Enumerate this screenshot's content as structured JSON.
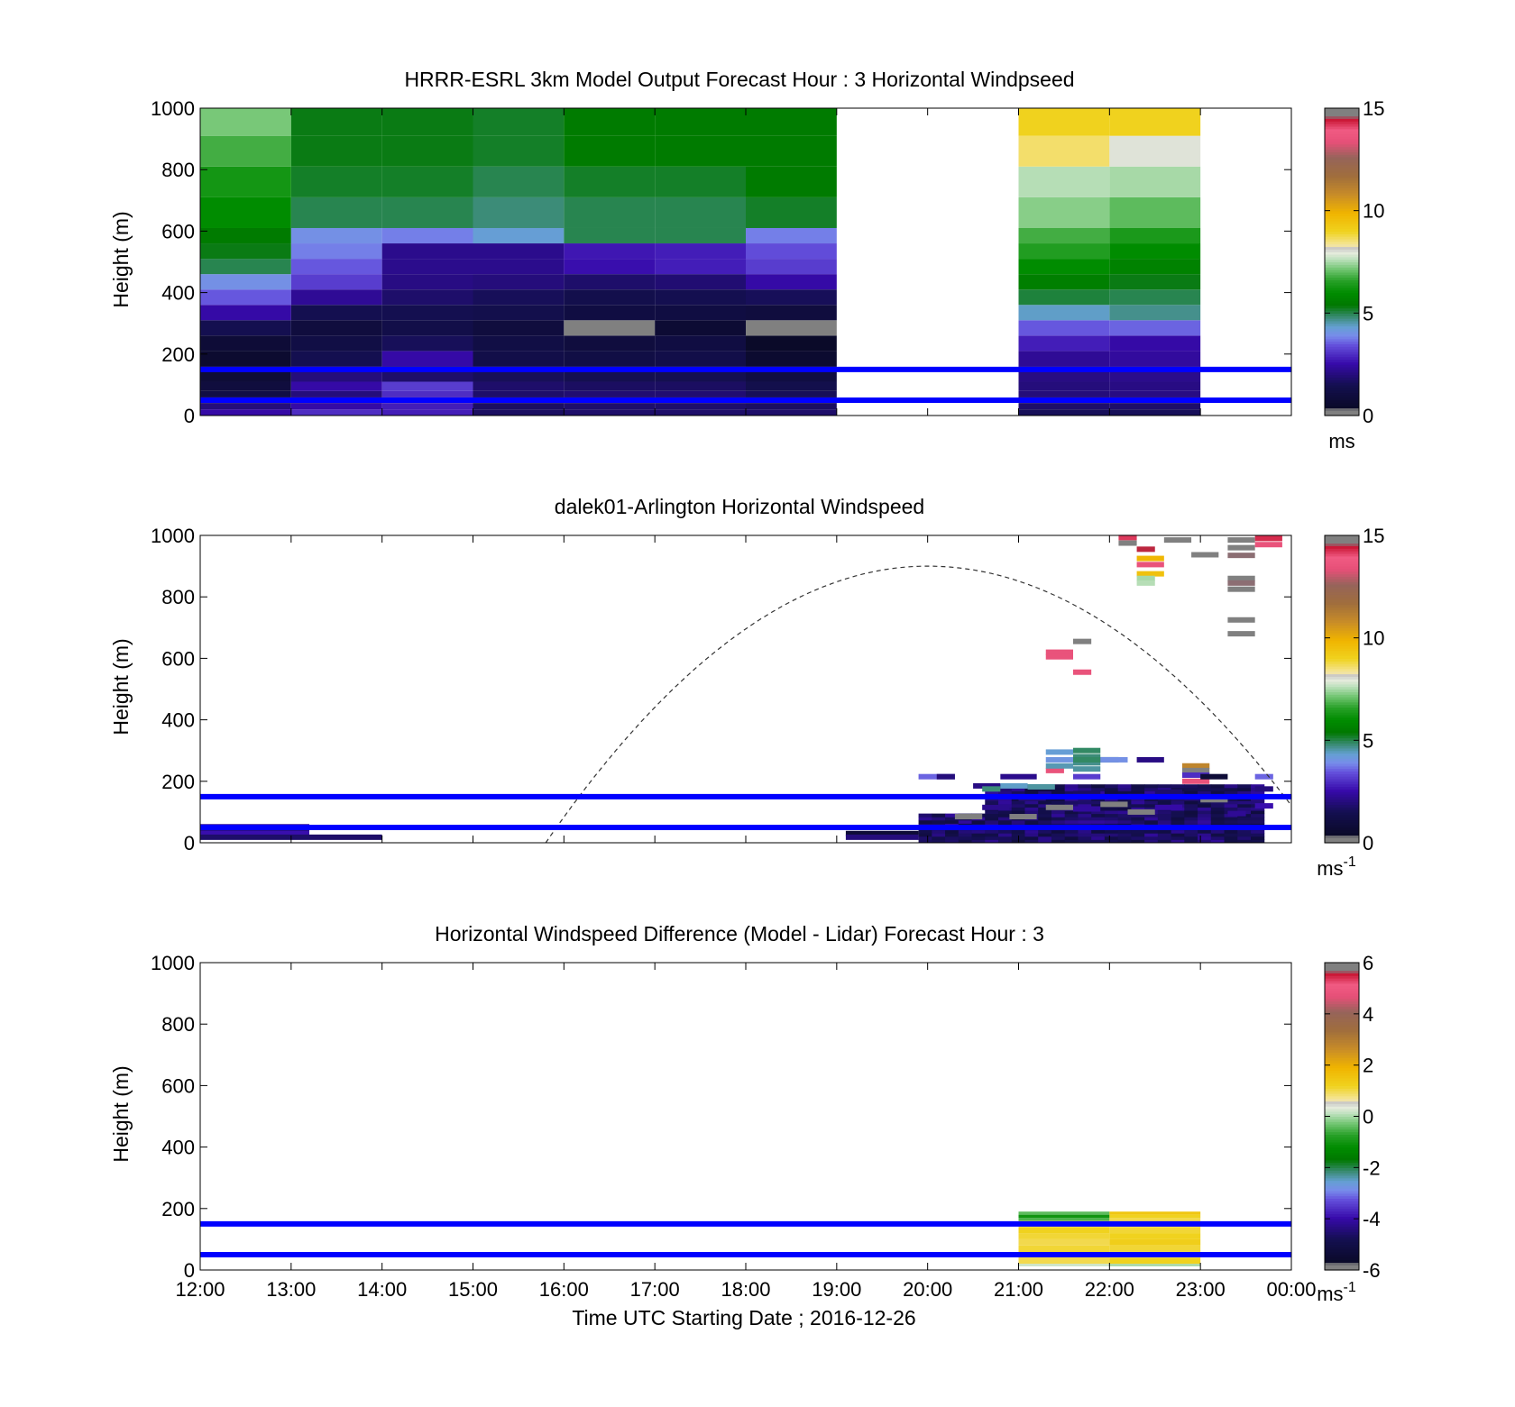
{
  "figure": {
    "xlabel": "Time UTC  Starting Date ; 2016-12-26",
    "xticks": [
      "12:00",
      "13:00",
      "14:00",
      "15:00",
      "16:00",
      "17:00",
      "18:00",
      "19:00",
      "20:00",
      "21:00",
      "22:00",
      "23:00",
      "00:00"
    ],
    "reference_heights_m": [
      50,
      150
    ],
    "reference_line_color": "#0000ff"
  },
  "chart_data": [
    {
      "type": "heatmap",
      "title": "HRRR-ESRL 3km Model Output   Forecast Hour : 3 Horizontal Windpseed",
      "ylabel": "Height (m)",
      "yticks": [
        "0",
        "200",
        "400",
        "600",
        "800",
        "1000"
      ],
      "ylim": [
        0,
        1000
      ],
      "xlim_hours": [
        12,
        24
      ],
      "colorbar": {
        "ticks": [
          "0",
          "5",
          "10",
          "15"
        ],
        "range": [
          0,
          15
        ],
        "unit": "ms",
        "unit_sup": ""
      },
      "cell_hours": 1,
      "layer_heights_m": [
        0,
        20,
        40,
        60,
        80,
        110,
        160,
        210,
        260,
        310,
        360,
        410,
        460,
        510,
        560,
        610,
        710,
        810,
        910,
        1000
      ],
      "columns": [
        {
          "start": 12,
          "values": [
            2.5,
            2.0,
            1.8,
            1.2,
            1.0,
            0.8,
            0.6,
            0.8,
            1.5,
            2.5,
            3.5,
            4.0,
            5.0,
            5.3,
            5.5,
            6.0,
            6.3,
            6.8,
            7.2
          ]
        },
        {
          "start": 13,
          "values": [
            3.0,
            2.5,
            2.2,
            2.0,
            2.5,
            2.0,
            1.5,
            1.2,
            1.0,
            1.5,
            2.3,
            3.2,
            3.5,
            3.8,
            4.0,
            5.0,
            5.2,
            5.3,
            5.3
          ]
        },
        {
          "start": 14,
          "values": [
            2.8,
            2.8,
            3.0,
            3.0,
            3.2,
            1.8,
            2.5,
            1.6,
            1.3,
            1.5,
            1.8,
            2.1,
            2.2,
            2.2,
            3.8,
            5.0,
            5.2,
            5.3,
            5.3
          ]
        },
        {
          "start": 15,
          "values": [
            1.7,
            1.7,
            1.8,
            1.8,
            1.8,
            1.6,
            1.3,
            1.2,
            1.0,
            1.4,
            1.6,
            2.0,
            2.2,
            2.2,
            4.3,
            4.8,
            5.0,
            5.2,
            5.2
          ]
        },
        {
          "start": 16,
          "values": [
            1.8,
            1.8,
            1.9,
            1.9,
            1.7,
            1.5,
            1.2,
            1.0,
            0,
            1.1,
            1.4,
            1.8,
            2.6,
            2.7,
            5.0,
            5.0,
            5.2,
            5.5,
            5.5
          ]
        },
        {
          "start": 17,
          "values": [
            1.8,
            1.8,
            1.9,
            1.9,
            1.7,
            1.5,
            1.3,
            1.1,
            0.7,
            1.1,
            1.5,
            1.9,
            2.8,
            2.8,
            5.0,
            5.0,
            5.2,
            5.5,
            5.5
          ]
        },
        {
          "start": 18,
          "values": [
            1.8,
            1.7,
            1.7,
            1.6,
            1.4,
            1.1,
            0.6,
            0.4,
            0,
            1.0,
            1.6,
            2.5,
            3.2,
            3.4,
            3.8,
            5.2,
            5.5,
            5.5,
            5.5
          ]
        },
        {
          "start": 21,
          "values": [
            1.6,
            1.8,
            2.0,
            2.0,
            2.0,
            2.1,
            2.3,
            2.8,
            3.5,
            4.4,
            5.1,
            5.6,
            6.0,
            6.5,
            6.8,
            7.3,
            7.6,
            8.6,
            9.0
          ]
        },
        {
          "start": 22,
          "values": [
            1.6,
            1.8,
            2.0,
            2.1,
            2.1,
            2.2,
            2.4,
            2.5,
            3.6,
            4.7,
            5.0,
            5.3,
            5.7,
            6.0,
            6.4,
            7.0,
            7.5,
            8.0,
            9.0
          ]
        }
      ]
    },
    {
      "type": "heatmap",
      "title": "dalek01-Arlington  Horizontal Windspeed",
      "ylabel": "Height (m)",
      "yticks": [
        "0",
        "200",
        "400",
        "600",
        "800",
        "1000"
      ],
      "ylim": [
        0,
        1000
      ],
      "xlim_hours": [
        12,
        24
      ],
      "colorbar": {
        "ticks": [
          "0",
          "5",
          "10",
          "15"
        ],
        "range": [
          0,
          15
        ],
        "unit": "ms",
        "unit_sup": "-1"
      },
      "daylight_curve": {
        "start_hour": 15.8,
        "peak_hour": 20.0,
        "end_hour": 24.0,
        "peak_height_m": 900
      },
      "dense_region": {
        "start_hour": 19.9,
        "end_hour": 23.7,
        "top_height_m": 190,
        "base_value": 1.0
      },
      "segments": [
        {
          "h0": 12.0,
          "h1": 13.2,
          "z": 52,
          "v": 2.3
        },
        {
          "h0": 12.0,
          "h1": 13.2,
          "z": 42,
          "v": 2.0
        },
        {
          "h0": 12.0,
          "h1": 13.2,
          "z": 30,
          "v": 2.6
        },
        {
          "h0": 12.0,
          "h1": 14.0,
          "z": 18,
          "v": 1.8
        },
        {
          "h0": 19.1,
          "h1": 19.9,
          "z": 30,
          "v": 0.8
        },
        {
          "h0": 19.1,
          "h1": 19.9,
          "z": 18,
          "v": 2.0
        },
        {
          "h0": 19.9,
          "h1": 20.3,
          "z": 215,
          "v": 3.6
        },
        {
          "h0": 20.1,
          "h1": 20.3,
          "z": 215,
          "v": 2.0
        },
        {
          "h0": 20.5,
          "h1": 20.8,
          "z": 185,
          "v": 2.1
        },
        {
          "h0": 20.6,
          "h1": 20.8,
          "z": 175,
          "v": 4.8
        },
        {
          "h0": 20.8,
          "h1": 21.1,
          "z": 185,
          "v": 4.4
        },
        {
          "h0": 21.1,
          "h1": 21.4,
          "z": 182,
          "v": 4.6
        },
        {
          "h0": 21.3,
          "h1": 21.5,
          "z": 235,
          "v": 13.5
        },
        {
          "h0": 20.8,
          "h1": 21.2,
          "z": 215,
          "v": 2.2
        },
        {
          "h0": 21.3,
          "h1": 21.6,
          "z": 295,
          "v": 4.3
        },
        {
          "h0": 21.3,
          "h1": 21.6,
          "z": 270,
          "v": 4.1
        },
        {
          "h0": 21.3,
          "h1": 21.6,
          "z": 250,
          "v": 4.5
        },
        {
          "h0": 21.6,
          "h1": 21.9,
          "z": 300,
          "v": 4.9
        },
        {
          "h0": 21.6,
          "h1": 21.9,
          "z": 280,
          "v": 4.8
        },
        {
          "h0": 21.6,
          "h1": 21.9,
          "z": 260,
          "v": 4.7
        },
        {
          "h0": 21.6,
          "h1": 21.9,
          "z": 240,
          "v": 4.6
        },
        {
          "h0": 21.6,
          "h1": 22.1,
          "z": 270,
          "v": 4.9
        },
        {
          "h0": 21.9,
          "h1": 22.2,
          "z": 270,
          "v": 4.0
        },
        {
          "h0": 21.6,
          "h1": 21.9,
          "z": 215,
          "v": 3.2
        },
        {
          "h0": 22.3,
          "h1": 22.6,
          "z": 270,
          "v": 2.1
        },
        {
          "h0": 22.8,
          "h1": 23.1,
          "z": 250,
          "v": 11.0
        },
        {
          "h0": 22.8,
          "h1": 23.1,
          "z": 235,
          "v": 0
        },
        {
          "h0": 22.8,
          "h1": 23.1,
          "z": 220,
          "v": 3.0
        },
        {
          "h0": 22.8,
          "h1": 23.1,
          "z": 200,
          "v": 13.5
        },
        {
          "h0": 23.0,
          "h1": 23.3,
          "z": 215,
          "v": 0.8
        },
        {
          "h0": 23.6,
          "h1": 23.8,
          "z": 215,
          "v": 3.6
        },
        {
          "h0": 23.6,
          "h1": 23.8,
          "z": 175,
          "v": 2.0
        },
        {
          "h0": 23.6,
          "h1": 23.8,
          "z": 120,
          "v": 2.6
        },
        {
          "h0": 20.3,
          "h1": 20.6,
          "z": 85,
          "v": 0
        },
        {
          "h0": 20.6,
          "h1": 20.9,
          "z": 115,
          "v": 2.2
        },
        {
          "h0": 20.9,
          "h1": 21.2,
          "z": 85,
          "v": 0
        },
        {
          "h0": 21.3,
          "h1": 21.6,
          "z": 115,
          "v": 0
        },
        {
          "h0": 21.6,
          "h1": 21.9,
          "z": 110,
          "v": 2.4
        },
        {
          "h0": 21.9,
          "h1": 22.2,
          "z": 125,
          "v": 0
        },
        {
          "h0": 22.2,
          "h1": 22.5,
          "z": 100,
          "v": 0
        },
        {
          "h0": 22.5,
          "h1": 22.8,
          "z": 115,
          "v": 2.5
        },
        {
          "h0": 23.0,
          "h1": 23.3,
          "z": 140,
          "v": 0
        },
        {
          "h0": 23.3,
          "h1": 23.5,
          "z": 95,
          "v": 2.3
        },
        {
          "h0": 21.0,
          "h1": 21.3,
          "z": 145,
          "v": 2.0
        },
        {
          "h0": 21.6,
          "h1": 21.9,
          "z": 160,
          "v": 1.7
        },
        {
          "h0": 22.2,
          "h1": 22.5,
          "z": 150,
          "v": 2.2
        },
        {
          "h0": 22.5,
          "h1": 22.8,
          "z": 165,
          "v": 1.8
        },
        {
          "h0": 21.3,
          "h1": 21.6,
          "z": 620,
          "v": 13.5
        },
        {
          "h0": 21.3,
          "h1": 21.6,
          "z": 605,
          "v": 13.5
        },
        {
          "h0": 21.6,
          "h1": 21.8,
          "z": 655,
          "v": 0
        },
        {
          "h0": 21.6,
          "h1": 21.8,
          "z": 555,
          "v": 13.5
        },
        {
          "h0": 22.1,
          "h1": 22.3,
          "z": 993,
          "v": 14.2
        },
        {
          "h0": 22.1,
          "h1": 22.3,
          "z": 975,
          "v": 14.8
        },
        {
          "h0": 22.3,
          "h1": 22.5,
          "z": 955,
          "v": 14.5
        },
        {
          "h0": 22.3,
          "h1": 22.6,
          "z": 925,
          "v": 9.8
        },
        {
          "h0": 22.3,
          "h1": 22.6,
          "z": 905,
          "v": 13.5
        },
        {
          "h0": 22.3,
          "h1": 22.6,
          "z": 875,
          "v": 9.5
        },
        {
          "h0": 22.3,
          "h1": 22.5,
          "z": 860,
          "v": 7.5
        },
        {
          "h0": 22.3,
          "h1": 22.5,
          "z": 845,
          "v": 7.6
        },
        {
          "h0": 22.6,
          "h1": 22.9,
          "z": 985,
          "v": 0
        },
        {
          "h0": 22.9,
          "h1": 23.2,
          "z": 937,
          "v": 0
        },
        {
          "h0": 23.3,
          "h1": 23.6,
          "z": 985,
          "v": 15.0
        },
        {
          "h0": 23.3,
          "h1": 23.6,
          "z": 960,
          "v": 14.8
        },
        {
          "h0": 23.3,
          "h1": 23.6,
          "z": 935,
          "v": 14.6
        },
        {
          "h0": 23.3,
          "h1": 23.6,
          "z": 860,
          "v": 14.9
        },
        {
          "h0": 23.3,
          "h1": 23.6,
          "z": 845,
          "v": 14.6
        },
        {
          "h0": 23.3,
          "h1": 23.6,
          "z": 825,
          "v": 0
        },
        {
          "h0": 23.3,
          "h1": 23.6,
          "z": 725,
          "v": 0
        },
        {
          "h0": 23.3,
          "h1": 23.6,
          "z": 680,
          "v": 0
        },
        {
          "h0": 23.6,
          "h1": 23.9,
          "z": 990,
          "v": 14.3
        },
        {
          "h0": 23.6,
          "h1": 23.9,
          "z": 970,
          "v": 13.5
        }
      ]
    },
    {
      "type": "heatmap",
      "title": "Horizontal Windspeed Difference (Model - Lidar) Forecast Hour : 3",
      "ylabel": "Height (m)",
      "yticks": [
        "0",
        "200",
        "400",
        "600",
        "800",
        "1000"
      ],
      "ylim": [
        0,
        1000
      ],
      "xlim_hours": [
        12,
        24
      ],
      "colorbar": {
        "ticks": [
          "-6",
          "-4",
          "-2",
          "0",
          "2",
          "4",
          "6"
        ],
        "range": [
          -6,
          6
        ],
        "unit": "ms",
        "unit_sup": "-1"
      },
      "cell_hours": 1,
      "layer_heights_m": [
        20,
        40,
        60,
        80,
        100,
        120,
        140,
        160,
        170,
        180,
        190
      ],
      "columns": [
        {
          "start": 21,
          "values": [
            1.0,
            1.2,
            1.1,
            1.0,
            1.1,
            1.2,
            1.0,
            -0.5,
            -1.0,
            -0.4
          ]
        },
        {
          "start": 22,
          "values": [
            1.2,
            1.0,
            1.1,
            1.3,
            1.2,
            1.1,
            1.0,
            1.0,
            1.2,
            1.5
          ]
        }
      ],
      "extra_cells": [
        {
          "h0": 21.0,
          "h1": 22.0,
          "z0": 12,
          "z1": 20,
          "v": 0.2
        },
        {
          "h0": 22.0,
          "h1": 23.0,
          "z0": 12,
          "z1": 20,
          "v": 0.0
        }
      ]
    }
  ]
}
